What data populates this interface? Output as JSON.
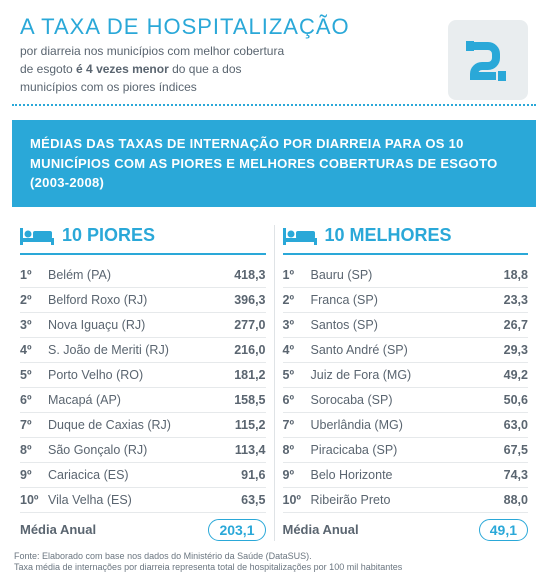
{
  "header": {
    "title": "A TAXA DE HOSPITALIZAÇÃO",
    "subtitle_1": "por diarreia nos municípios com melhor cobertura de esgoto ",
    "subtitle_bold": "é 4 vezes menor",
    "subtitle_2": " do que a dos municípios com os piores índices"
  },
  "banner": "MÉDIAS DAS TAXAS DE INTERNAÇÃO POR DIARREIA PARA OS 10 MUNICÍPIOS COM AS PIORES E MELHORES COBERTURAS DE ESGOTO (2003-2008)",
  "colors": {
    "accent": "#2aa8d8",
    "text": "#5a6570",
    "icon_bg": "#e9edef"
  },
  "worst": {
    "title": "10 PIORES",
    "rows": [
      {
        "rank": "1º",
        "city": "Belém (PA)",
        "val": "418,3"
      },
      {
        "rank": "2º",
        "city": "Belford Roxo (RJ)",
        "val": "396,3"
      },
      {
        "rank": "3º",
        "city": "Nova Iguaçu (RJ)",
        "val": "277,0"
      },
      {
        "rank": "4º",
        "city": "S. João de Meriti (RJ)",
        "val": "216,0"
      },
      {
        "rank": "5º",
        "city": "Porto Velho (RO)",
        "val": "181,2"
      },
      {
        "rank": "6º",
        "city": "Macapá (AP)",
        "val": "158,5"
      },
      {
        "rank": "7º",
        "city": "Duque de Caxias (RJ)",
        "val": "115,2"
      },
      {
        "rank": "8º",
        "city": "São Gonçalo (RJ)",
        "val": "113,4"
      },
      {
        "rank": "9º",
        "city": "Cariacica (ES)",
        "val": "91,6"
      },
      {
        "rank": "10º",
        "city": "Vila Velha (ES)",
        "val": "63,5"
      }
    ],
    "avg_label": "Média Anual",
    "avg_val": "203,1"
  },
  "best": {
    "title": "10 MELHORES",
    "rows": [
      {
        "rank": "1º",
        "city": "Bauru (SP)",
        "val": "18,8"
      },
      {
        "rank": "2º",
        "city": "Franca (SP)",
        "val": "23,3"
      },
      {
        "rank": "3º",
        "city": "Santos (SP)",
        "val": "26,7"
      },
      {
        "rank": "4º",
        "city": "Santo André (SP)",
        "val": "29,3"
      },
      {
        "rank": "5º",
        "city": "Juiz de Fora (MG)",
        "val": "49,2"
      },
      {
        "rank": "6º",
        "city": "Sorocaba (SP)",
        "val": "50,6"
      },
      {
        "rank": "7º",
        "city": "Uberlândia (MG)",
        "val": "63,0"
      },
      {
        "rank": "8º",
        "city": "Piracicaba (SP)",
        "val": "67,5"
      },
      {
        "rank": "9º",
        "city": "Belo Horizonte",
        "val": "74,3"
      },
      {
        "rank": "10º",
        "city": "Ribeirão Preto",
        "val": "88,0"
      }
    ],
    "avg_label": "Média Anual",
    "avg_val": "49,1"
  },
  "footnote_1": "Fonte: Elaborado com base nos dados do Ministério da Saúde (DataSUS).",
  "footnote_2": "Taxa média de internações por diarreia representa total de hospitalizações por 100 mil habitantes"
}
